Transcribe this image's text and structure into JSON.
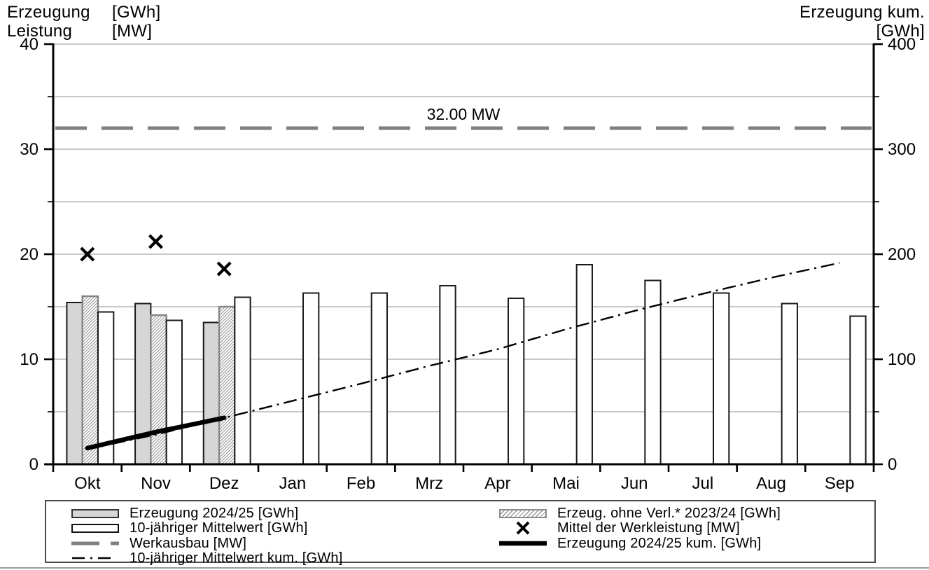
{
  "titles": {
    "left_line1_name": "Erzeugung",
    "left_line1_unit": "[GWh]",
    "left_line2_name": "Leistung",
    "left_line2_unit": "[MW]",
    "right_line1": "Erzeugung kum.",
    "right_line2": "[GWh]"
  },
  "chart_data": {
    "type": "bar",
    "title": "",
    "categories": [
      "Okt",
      "Nov",
      "Dez",
      "Jan",
      "Feb",
      "Mrz",
      "Apr",
      "Mai",
      "Jun",
      "Jul",
      "Aug",
      "Sep"
    ],
    "left_axis": {
      "label": "Erzeugung [GWh] / Leistung [MW]",
      "min": 0,
      "max": 40,
      "major_ticks": [
        0,
        10,
        20,
        30,
        40
      ],
      "minor_ticks": [
        5,
        15,
        25,
        35
      ]
    },
    "right_axis": {
      "label": "Erzeugung kum. [GWh]",
      "min": 0,
      "max": 400,
      "major_ticks": [
        0,
        100,
        200,
        300,
        400
      ],
      "minor_ticks": [
        50,
        150,
        250,
        350
      ]
    },
    "grid": "horizontal lines every 5 GWh",
    "legend_position": "bottom box, two columns",
    "series": [
      {
        "name": "Erzeugung 2024/25 [GWh]",
        "type": "bar",
        "style": "gray",
        "values": [
          15.4,
          15.3,
          13.5,
          null,
          null,
          null,
          null,
          null,
          null,
          null,
          null,
          null
        ]
      },
      {
        "name": "Erzeug. ohne Verl.* 2023/24 [GWh]",
        "type": "bar",
        "style": "hatched",
        "values": [
          16.0,
          14.2,
          15.0,
          null,
          null,
          null,
          null,
          null,
          null,
          null,
          null,
          null
        ]
      },
      {
        "name": "10-jähriger Mittelwert [GWh]",
        "type": "bar",
        "style": "white",
        "values": [
          14.5,
          13.7,
          15.9,
          16.3,
          16.3,
          17.0,
          15.8,
          19.0,
          17.5,
          16.3,
          15.3,
          14.1
        ]
      },
      {
        "name": "Werkausbau [MW]",
        "type": "line-dashed",
        "constant": 32,
        "label": "32.00 MW",
        "color": "#7f7f7f"
      },
      {
        "name": "Mittel der Werkleistung [MW]",
        "type": "marker-x",
        "values": [
          20.0,
          21.2,
          18.6,
          null,
          null,
          null,
          null,
          null,
          null,
          null,
          null,
          null
        ]
      },
      {
        "name": "Erzeugung 2024/25 kum. [GWh]",
        "type": "line-thick",
        "axis": "right",
        "values": [
          15.4,
          30.7,
          44.2,
          null,
          null,
          null,
          null,
          null,
          null,
          null,
          null,
          null
        ]
      },
      {
        "name": "10-jähriger Mittelwert kum. [GWh]",
        "type": "line-dashdot",
        "axis": "right",
        "values": [
          14.5,
          28.2,
          44.1,
          60.4,
          76.7,
          93.7,
          109.5,
          128.5,
          146.0,
          162.3,
          177.6,
          191.7
        ]
      }
    ]
  },
  "legend": {
    "items": [
      {
        "label": "Erzeugung 2024/25 [GWh]",
        "swatch": "bar-gray"
      },
      {
        "label": "10-jähriger Mittelwert [GWh]",
        "swatch": "bar-white"
      },
      {
        "label": "Werkausbau [MW]",
        "swatch": "dashed-gray-line"
      },
      {
        "label": "10-jähriger Mittelwert kum. [GWh]",
        "swatch": "dashdot-line"
      },
      {
        "label": "Erzeug. ohne Verl.* 2023/24 [GWh]",
        "swatch": "bar-hatched"
      },
      {
        "label": "Mittel der Werkleistung [MW]",
        "swatch": "x-marker"
      },
      {
        "label": "Erzeugung 2024/25 kum. [GWh]",
        "swatch": "thick-black-line"
      }
    ]
  },
  "colors": {
    "bar_gray_fill": "#d6d6d6",
    "bar_border": "#1a1a1a",
    "hatch_border": "#868686",
    "hatch_line": "#9a9a9a",
    "werkausbau_line": "#7f7f7f",
    "grid_line": "#909090",
    "axis": "#000000"
  }
}
